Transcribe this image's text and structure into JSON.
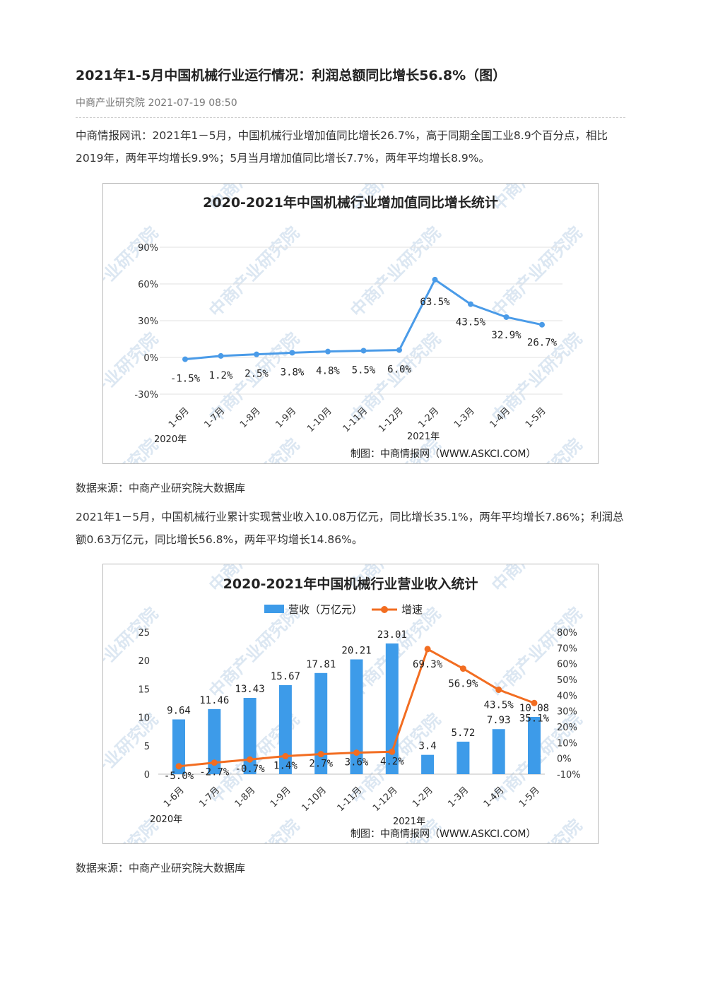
{
  "article": {
    "title": "2021年1-5月中国机械行业运行情况：利润总额同比增长56.8%（图）",
    "meta": "中商产业研究院 2021-07-19 08:50",
    "para1": "中商情报网讯：2021年1－5月，中国机械行业增加值同比增长26.7%，高于同期全国工业8.9个百分点，相比2019年，两年平均增长9.9%；5月当月增加值同比增长7.7%，两年平均增长8.9%。",
    "source1": "数据来源：中商产业研究院大数据库",
    "para2": "2021年1－5月，中国机械行业累计实现营业收入10.08万亿元，同比增长35.1%，两年平均增长7.86%；利润总额0.63万亿元，同比增长56.8%，两年平均增长14.86%。",
    "source2": "数据来源：中商产业研究院大数据库"
  },
  "watermark": "中商产业研究院",
  "chart_data": [
    {
      "type": "line",
      "title": "2020-2021年中国机械行业增加值同比增长统计",
      "categories": [
        "1-6月",
        "1-7月",
        "1-8月",
        "1-9月",
        "1-10月",
        "1-11月",
        "1-12月",
        "1-2月",
        "1-3月",
        "1-4月",
        "1-5月"
      ],
      "year_labels": [
        "2020年",
        "2021年"
      ],
      "series": [
        {
          "values": [
            -1.5,
            1.2,
            2.5,
            3.8,
            4.8,
            5.5,
            6.0,
            63.5,
            43.5,
            32.9,
            26.7
          ],
          "labels": [
            "-1.5%",
            "1.2%",
            "2.5%",
            "3.8%",
            "4.8%",
            "5.5%",
            "6.0%",
            "63.5%",
            "43.5%",
            "32.9%",
            "26.7%"
          ]
        }
      ],
      "ylim": [
        -30,
        90
      ],
      "yticks": [
        "-30%",
        "0%",
        "30%",
        "60%",
        "90%"
      ],
      "grid": true,
      "credit": "制图：中商情报网（WWW.ASKCI.COM）",
      "color": "#4a9be8"
    },
    {
      "type": "bar",
      "title": "2020-2021年中国机械行业营业收入统计",
      "categories": [
        "1-6月",
        "1-7月",
        "1-8月",
        "1-9月",
        "1-10月",
        "1-11月",
        "1-12月",
        "1-2月",
        "1-3月",
        "1-4月",
        "1-5月"
      ],
      "year_labels": [
        "2020年",
        "2021年"
      ],
      "series": [
        {
          "name": "营收（万亿元）",
          "kind": "bar",
          "axis": "left",
          "color": "#3d9be9",
          "values": [
            9.64,
            11.46,
            13.43,
            15.67,
            17.81,
            20.21,
            23.01,
            3.4,
            5.72,
            7.93,
            10.08
          ],
          "labels": [
            "9.64",
            "11.46",
            "13.43",
            "15.67",
            "17.81",
            "20.21",
            "23.01",
            "3.4",
            "5.72",
            "7.93",
            "10.08"
          ]
        },
        {
          "name": "增速",
          "kind": "line",
          "axis": "right",
          "color": "#f26d21",
          "values": [
            -5.0,
            -2.7,
            -0.7,
            1.4,
            2.7,
            3.6,
            4.2,
            69.3,
            56.9,
            43.5,
            35.1
          ],
          "labels": [
            "-5.0%",
            "-2.7%",
            "-0.7%",
            "1.4%",
            "2.7%",
            "3.6%",
            "4.2%",
            "69.3%",
            "56.9%",
            "43.5%",
            "35.1%"
          ]
        }
      ],
      "ylim_left": [
        0,
        25
      ],
      "yticks_left": [
        "0",
        "5",
        "10",
        "15",
        "20",
        "25"
      ],
      "ylim_right": [
        -10,
        80
      ],
      "yticks_right": [
        "-10%",
        "0%",
        "10%",
        "20%",
        "30%",
        "40%",
        "50%",
        "60%",
        "70%",
        "80%"
      ],
      "legend": "top",
      "credit": "制图：中商情报网（WWW.ASKCI.COM）"
    }
  ]
}
